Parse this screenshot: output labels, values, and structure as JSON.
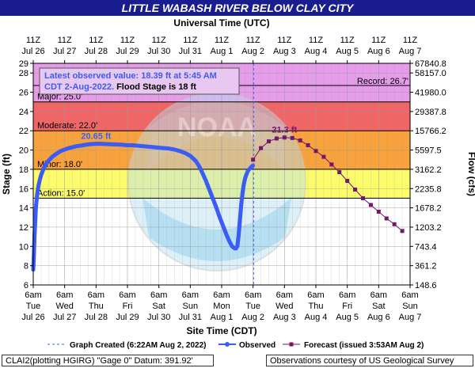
{
  "chart_data": {
    "type": "line",
    "title": "LITTLE WABASH RIVER BELOW CLAY CITY",
    "top_axis_title": "Universal Time (UTC)",
    "bottom_axis_title": "Site Time (CDT)",
    "ylabel": "Stage (ft)",
    "y2label": "Flow (cfs)",
    "ylim": [
      6,
      29
    ],
    "y_ticks": [
      6,
      8,
      10,
      12,
      14,
      16,
      18,
      20,
      22,
      24,
      26,
      28
    ],
    "y2_ticks": [
      {
        "stage": 6,
        "label": "148.6"
      },
      {
        "stage": 8,
        "label": "361.2"
      },
      {
        "stage": 10,
        "label": "743.4"
      },
      {
        "stage": 12,
        "label": "1203.2"
      },
      {
        "stage": 14,
        "label": "1678.2"
      },
      {
        "stage": 16,
        "label": "2235.8"
      },
      {
        "stage": 18,
        "label": "3162.2"
      },
      {
        "stage": 20,
        "label": "5597.5"
      },
      {
        "stage": 22,
        "label": "15766.2"
      },
      {
        "stage": 24,
        "label": "29387.8"
      },
      {
        "stage": 26,
        "label": "41980.0"
      },
      {
        "stage": 28,
        "label": "58157.0"
      },
      {
        "stage": 29,
        "label": "67840.8"
      }
    ],
    "x_range_hours": [
      0,
      288
    ],
    "top_ticks": [
      {
        "h": 0,
        "l1": "11Z",
        "l2": "Jul 26"
      },
      {
        "h": 24,
        "l1": "11Z",
        "l2": "Jul 27"
      },
      {
        "h": 48,
        "l1": "11Z",
        "l2": "Jul 28"
      },
      {
        "h": 72,
        "l1": "11Z",
        "l2": "Jul 29"
      },
      {
        "h": 96,
        "l1": "11Z",
        "l2": "Jul 30"
      },
      {
        "h": 120,
        "l1": "11Z",
        "l2": "Jul 31"
      },
      {
        "h": 144,
        "l1": "11Z",
        "l2": "Aug 1"
      },
      {
        "h": 168,
        "l1": "11Z",
        "l2": "Aug 2"
      },
      {
        "h": 192,
        "l1": "11Z",
        "l2": "Aug 3"
      },
      {
        "h": 216,
        "l1": "11Z",
        "l2": "Aug 4"
      },
      {
        "h": 240,
        "l1": "11Z",
        "l2": "Aug 5"
      },
      {
        "h": 264,
        "l1": "11Z",
        "l2": "Aug 6"
      },
      {
        "h": 288,
        "l1": "11Z",
        "l2": "Aug 7"
      }
    ],
    "bottom_ticks": [
      {
        "h": 0,
        "l1": "6am",
        "l2": "Tue",
        "l3": "Jul 26"
      },
      {
        "h": 24,
        "l1": "6am",
        "l2": "Wed",
        "l3": "Jul 27"
      },
      {
        "h": 48,
        "l1": "6am",
        "l2": "Thu",
        "l3": "Jul 28"
      },
      {
        "h": 72,
        "l1": "6am",
        "l2": "Fri",
        "l3": "Jul 29"
      },
      {
        "h": 96,
        "l1": "6am",
        "l2": "Sat",
        "l3": "Jul 30"
      },
      {
        "h": 120,
        "l1": "6am",
        "l2": "Sun",
        "l3": "Jul 31"
      },
      {
        "h": 144,
        "l1": "6am",
        "l2": "Mon",
        "l3": "Aug 1"
      },
      {
        "h": 168,
        "l1": "6am",
        "l2": "Tue",
        "l3": "Aug 2"
      },
      {
        "h": 192,
        "l1": "6am",
        "l2": "Wed",
        "l3": "Aug 3"
      },
      {
        "h": 216,
        "l1": "6am",
        "l2": "Thu",
        "l3": "Aug 4"
      },
      {
        "h": 240,
        "l1": "6am",
        "l2": "Fri",
        "l3": "Aug 5"
      },
      {
        "h": 264,
        "l1": "6am",
        "l2": "Sat",
        "l3": "Aug 6"
      },
      {
        "h": 288,
        "l1": "6am",
        "l2": "Sun",
        "l3": "Aug 7"
      }
    ],
    "bands": [
      {
        "name": "Major",
        "from": 25,
        "to": 29,
        "color": "#e59de9",
        "label": "Major: 25.0'"
      },
      {
        "name": "Moderate",
        "from": 22,
        "to": 25,
        "color": "#f06565",
        "label": "Moderate: 22.0'"
      },
      {
        "name": "Minor",
        "from": 18,
        "to": 22,
        "color": "#f7a23c",
        "label": "Minor: 18.0'"
      },
      {
        "name": "Action",
        "from": 15,
        "to": 18,
        "color": "#fbfb6c",
        "label": "Action: 15.0'"
      }
    ],
    "record": {
      "stage": 26.7,
      "label": "Record: 26.7'"
    },
    "graph_created_hours": 168.4,
    "observed": {
      "name": "Observed",
      "color": "#3b5cf5",
      "x": [
        0,
        0.5,
        1,
        1.5,
        2,
        3,
        4,
        5,
        6,
        8,
        10,
        12,
        15,
        18,
        21,
        24,
        27,
        30,
        33,
        36,
        40,
        44,
        48,
        52,
        56,
        60,
        64,
        68,
        72,
        76,
        80,
        84,
        88,
        92,
        96,
        100,
        104,
        108,
        112,
        116,
        120,
        124,
        126,
        128,
        130,
        132,
        134,
        136,
        138,
        140,
        142,
        144,
        146,
        148,
        150,
        152,
        154,
        155,
        156,
        157,
        158,
        159,
        160,
        161,
        162,
        163,
        164,
        165,
        166,
        167,
        167.9
      ],
      "y": [
        7.6,
        9.2,
        11.2,
        12.6,
        14.0,
        15.4,
        16.3,
        16.9,
        17.4,
        18.1,
        18.6,
        18.95,
        19.35,
        19.65,
        19.9,
        20.05,
        20.2,
        20.3,
        20.4,
        20.45,
        20.55,
        20.62,
        20.65,
        20.65,
        20.62,
        20.6,
        20.58,
        20.55,
        20.5,
        20.5,
        20.45,
        20.4,
        20.35,
        20.3,
        20.25,
        20.2,
        20.15,
        20.05,
        19.9,
        19.7,
        19.4,
        18.9,
        18.5,
        18.0,
        17.4,
        16.8,
        16.1,
        15.4,
        14.7,
        14.0,
        13.2,
        12.5,
        11.8,
        11.1,
        10.5,
        10.0,
        9.8,
        9.8,
        10.0,
        11.2,
        12.8,
        14.4,
        15.6,
        16.5,
        17.1,
        17.5,
        17.8,
        18.0,
        18.15,
        18.3,
        18.39
      ]
    },
    "forecast": {
      "name": "Forecast (issued 3:53AM Aug 2)",
      "color": "#73166e",
      "x": [
        168,
        174,
        180,
        186,
        192,
        198,
        204,
        210,
        216,
        222,
        228,
        234,
        240,
        246,
        252,
        258,
        264,
        270,
        276,
        282
      ],
      "y": [
        19.0,
        20.2,
        20.9,
        21.2,
        21.3,
        21.25,
        21.0,
        20.5,
        19.9,
        19.3,
        18.5,
        17.7,
        16.8,
        15.9,
        15.0,
        14.3,
        13.6,
        12.9,
        12.3,
        11.6
      ]
    },
    "annotations": [
      {
        "text": "20.65 ft",
        "x": 48,
        "y": 20.65,
        "color": "#3b5cf5"
      },
      {
        "text": "21.3 ft",
        "x": 192,
        "y": 21.3,
        "color": "#73166e"
      }
    ],
    "grid": true
  },
  "info_box": {
    "line1": "Latest observed value: 18.39 ft at 5:45 AM",
    "line2a": "CDT 2-Aug-2022.",
    "line2b": " Flood Stage is 18 ft"
  },
  "watermark_text": "NOAA",
  "legend": {
    "graph_created": "Graph Created (6:22AM Aug 2, 2022)",
    "observed": "Observed",
    "forecast": "Forecast (issued 3:53AM Aug 2)"
  },
  "footer": {
    "left": "CLAI2(plotting HGIRG) \"Gage 0\" Datum: 391.92'",
    "right": "Observations courtesy of US Geological Survey"
  },
  "colors": {
    "title_bar": "#1a1d8f",
    "observed": "#3b5cf5",
    "forecast": "#73166e"
  }
}
